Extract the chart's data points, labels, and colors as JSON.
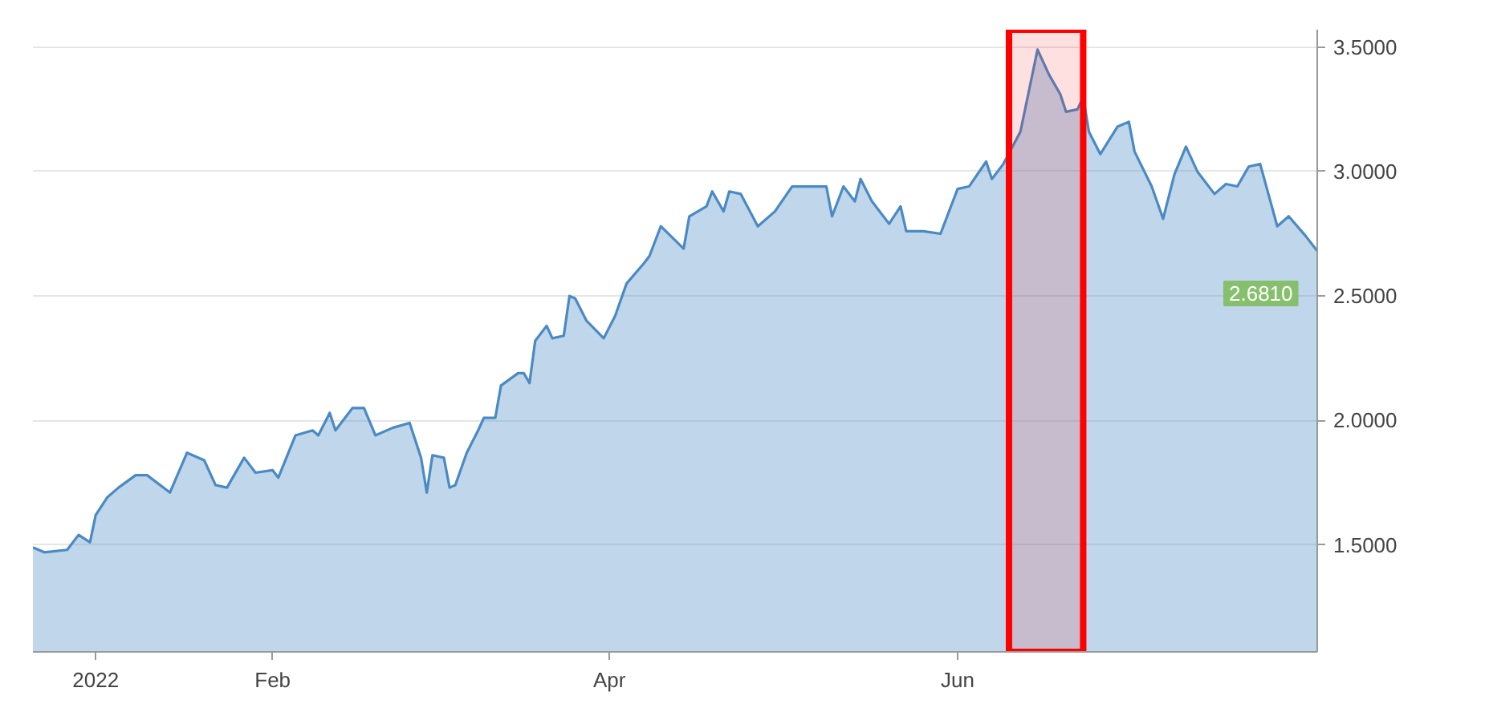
{
  "chart_data": {
    "type": "area",
    "x": [
      "2021-12-21",
      "2021-12-23",
      "2021-12-27",
      "2021-12-29",
      "2021-12-31",
      "2022-01-01",
      "2022-01-03",
      "2022-01-05",
      "2022-01-08",
      "2022-01-10",
      "2022-01-14",
      "2022-01-17",
      "2022-01-20",
      "2022-01-22",
      "2022-01-24",
      "2022-01-27",
      "2022-01-29",
      "2022-02-01",
      "2022-02-02",
      "2022-02-05",
      "2022-02-08",
      "2022-02-09",
      "2022-02-11",
      "2022-02-12",
      "2022-02-15",
      "2022-02-17",
      "2022-02-19",
      "2022-02-22",
      "2022-02-25",
      "2022-02-27",
      "2022-02-28",
      "2022-03-01",
      "2022-03-03",
      "2022-03-04",
      "2022-03-05",
      "2022-03-07",
      "2022-03-09",
      "2022-03-10",
      "2022-03-12",
      "2022-03-13",
      "2022-03-16",
      "2022-03-17",
      "2022-03-18",
      "2022-03-19",
      "2022-03-21",
      "2022-03-22",
      "2022-03-24",
      "2022-03-25",
      "2022-03-26",
      "2022-03-28",
      "2022-03-31",
      "2022-04-02",
      "2022-04-04",
      "2022-04-07",
      "2022-04-08",
      "2022-04-10",
      "2022-04-14",
      "2022-04-15",
      "2022-04-18",
      "2022-04-19",
      "2022-04-21",
      "2022-04-22",
      "2022-04-24",
      "2022-04-27",
      "2022-04-30",
      "2022-05-03",
      "2022-05-09",
      "2022-05-10",
      "2022-05-12",
      "2022-05-14",
      "2022-05-15",
      "2022-05-17",
      "2022-05-20",
      "2022-05-22",
      "2022-05-23",
      "2022-05-26",
      "2022-05-29",
      "2022-06-01",
      "2022-06-03",
      "2022-06-06",
      "2022-06-07",
      "2022-06-09",
      "2022-06-12",
      "2022-06-14",
      "2022-06-15",
      "2022-06-17",
      "2022-06-19",
      "2022-06-20",
      "2022-06-22",
      "2022-06-23",
      "2022-06-24",
      "2022-06-26",
      "2022-06-29",
      "2022-07-01",
      "2022-07-02",
      "2022-07-05",
      "2022-07-07",
      "2022-07-09",
      "2022-07-11",
      "2022-07-13",
      "2022-07-16",
      "2022-07-18",
      "2022-07-20",
      "2022-07-22",
      "2022-07-24",
      "2022-07-27",
      "2022-07-29",
      "2022-08-01",
      "2022-08-03"
    ],
    "series": [
      {
        "color": "#4a8ac4",
        "values": [
          1.49,
          1.47,
          1.48,
          1.54,
          1.51,
          1.62,
          1.69,
          1.73,
          1.78,
          1.78,
          1.71,
          1.87,
          1.84,
          1.74,
          1.73,
          1.85,
          1.79,
          1.8,
          1.77,
          1.94,
          1.96,
          1.94,
          2.03,
          1.96,
          2.05,
          2.05,
          1.94,
          1.97,
          1.99,
          1.85,
          1.71,
          1.86,
          1.85,
          1.73,
          1.74,
          1.87,
          1.96,
          2.01,
          2.01,
          2.14,
          2.19,
          2.19,
          2.15,
          2.32,
          2.38,
          2.33,
          2.34,
          2.5,
          2.49,
          2.4,
          2.33,
          2.42,
          2.55,
          2.63,
          2.66,
          2.78,
          2.69,
          2.82,
          2.86,
          2.92,
          2.84,
          2.92,
          2.91,
          2.78,
          2.84,
          2.94,
          2.94,
          2.82,
          2.94,
          2.88,
          2.97,
          2.88,
          2.79,
          2.86,
          2.76,
          2.76,
          2.75,
          2.93,
          2.94,
          3.04,
          2.97,
          3.03,
          3.16,
          3.38,
          3.49,
          3.39,
          3.31,
          3.24,
          3.25,
          3.3,
          3.16,
          3.07,
          3.18,
          3.2,
          3.08,
          2.94,
          2.81,
          2.99,
          3.1,
          3.0,
          2.91,
          2.95,
          2.94,
          3.02,
          3.03,
          2.78,
          2.82,
          2.74,
          2.681
        ]
      }
    ],
    "xlim": [
      "2021-12-21",
      "2022-08-03"
    ],
    "xticks": [
      {
        "value": "2022-01-01",
        "label": "2022"
      },
      {
        "value": "2022-02-01",
        "label": "Feb"
      },
      {
        "value": "2022-04-01",
        "label": "Apr"
      },
      {
        "value": "2022-06-01",
        "label": "Jun"
      }
    ],
    "ylim": [
      1.07,
      3.57
    ],
    "yticks": [
      {
        "value": 1.5,
        "label": "1.5000"
      },
      {
        "value": 2.0,
        "label": "2.0000"
      },
      {
        "value": 2.5,
        "label": "2.5000"
      },
      {
        "value": 3.0,
        "label": "3.0000"
      },
      {
        "value": 3.5,
        "label": "3.5000"
      }
    ],
    "bands": [
      {
        "axis": "x",
        "from": "2022-06-10",
        "to": "2022-06-23",
        "color": "#ff0000"
      }
    ],
    "annotations": [
      {
        "text": "2.6810",
        "x": "2022-08-03",
        "y": 2.681
      }
    ],
    "grid": true
  }
}
